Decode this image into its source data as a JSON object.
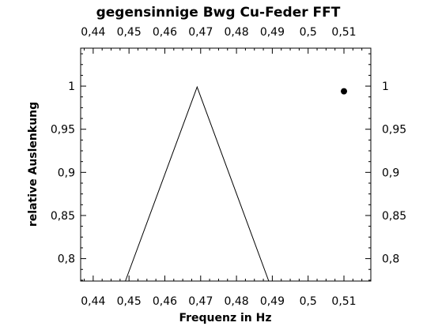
{
  "chart_data": {
    "type": "line",
    "title": "gegensinnige Bwg Cu-Feder FFT",
    "xlabel": "Frequenz in Hz",
    "ylabel": "relative Auslenkung",
    "xlim": [
      0.4365,
      0.5175
    ],
    "ylim": [
      0.774,
      1.044
    ],
    "x_ticks": [
      "0,44",
      "0,45",
      "0,46",
      "0,47",
      "0,48",
      "0,49",
      "0,5",
      "0,51"
    ],
    "y_ticks": [
      "0,8",
      "0,85",
      "0,9",
      "0,95",
      "1"
    ],
    "mirror_axes": true,
    "grid": false,
    "series": [
      {
        "name": "",
        "style": "line",
        "x": [
          0.449,
          0.469,
          0.489
        ],
        "y": [
          0.774,
          0.999,
          0.774
        ]
      },
      {
        "name": "",
        "style": "marker",
        "x": [
          0.51
        ],
        "y": [
          0.994
        ]
      }
    ]
  }
}
